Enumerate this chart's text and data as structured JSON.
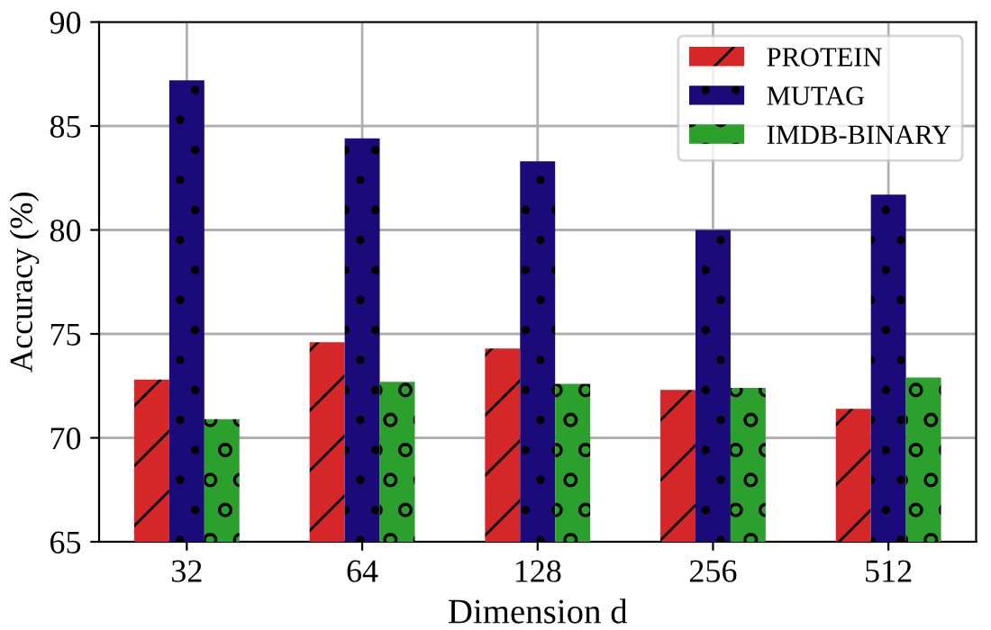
{
  "chart_data": {
    "type": "bar",
    "xlabel": "Dimension d",
    "ylabel": "Accuracy (%)",
    "categories": [
      "32",
      "64",
      "128",
      "256",
      "512"
    ],
    "series": [
      {
        "name": "PROTEIN",
        "color": "#d62728",
        "values": [
          72.8,
          74.6,
          74.3,
          72.3,
          71.4
        ]
      },
      {
        "name": "MUTAG",
        "color": "#1b0a7a",
        "values": [
          87.2,
          84.4,
          83.3,
          80.0,
          81.7
        ]
      },
      {
        "name": "IMDB-BINARY",
        "color": "#2ca02c",
        "values": [
          70.9,
          72.7,
          72.6,
          72.4,
          72.9
        ]
      }
    ],
    "ylim": [
      65,
      90
    ],
    "yticks": [
      65,
      70,
      75,
      80,
      85,
      90
    ],
    "grid": true,
    "legend": "top right"
  }
}
